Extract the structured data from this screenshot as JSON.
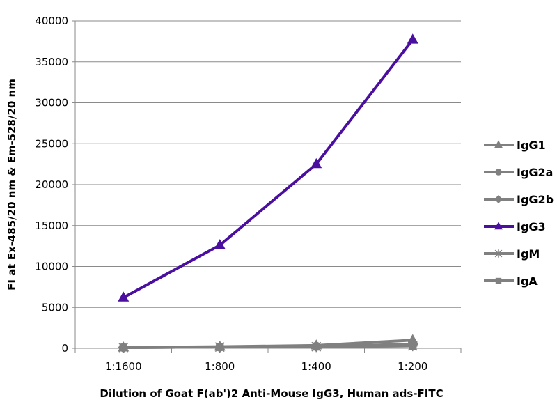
{
  "chart_data": {
    "type": "line",
    "title": "",
    "xlabel": "Dilution of Goat F(ab')2 Anti-Mouse IgG3, Human ads-FITC",
    "ylabel": "FI at Ex-485/20 nm & Em-528/20 nm",
    "categories": [
      "1:1600",
      "1:800",
      "1:400",
      "1:200"
    ],
    "ylim": [
      0,
      40000
    ],
    "yticks": [
      0,
      5000,
      10000,
      15000,
      20000,
      25000,
      30000,
      35000,
      40000
    ],
    "grid": "horizontal",
    "legend_position": "right",
    "series": [
      {
        "name": "IgG1",
        "values": [
          100,
          200,
          350,
          1000
        ],
        "color": "#808080",
        "marker": "triangle"
      },
      {
        "name": "IgG2a",
        "values": [
          100,
          150,
          250,
          400
        ],
        "color": "#808080",
        "marker": "circle"
      },
      {
        "name": "IgG2b",
        "values": [
          100,
          150,
          250,
          500
        ],
        "color": "#808080",
        "marker": "diamond"
      },
      {
        "name": "IgG3",
        "values": [
          6200,
          12600,
          22500,
          37700
        ],
        "color": "#4B0FA0",
        "marker": "triangle"
      },
      {
        "name": "IgM",
        "values": [
          100,
          150,
          200,
          300
        ],
        "color": "#808080",
        "marker": "star"
      },
      {
        "name": "IgA",
        "values": [
          100,
          150,
          200,
          300
        ],
        "color": "#808080",
        "marker": "square"
      }
    ]
  }
}
